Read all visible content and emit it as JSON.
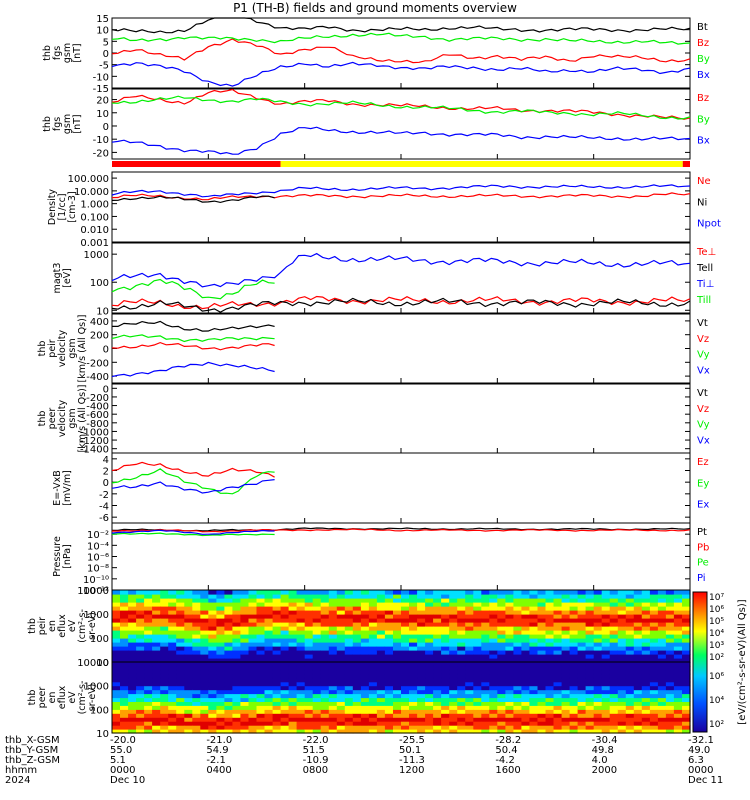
{
  "title": "P1 (TH-B) fields and ground moments overview",
  "colors": {
    "black": "#000000",
    "red": "#ff0000",
    "green": "#00ee00",
    "blue": "#0000ff",
    "yellow": "#ffff00"
  },
  "chart_data": [
    {
      "type": "line",
      "ylabel": [
        "thb",
        "fgs",
        "gsm",
        "[nT]"
      ],
      "ylim": [
        -15,
        15
      ],
      "ticks": [
        15,
        10,
        5,
        0,
        -5,
        -10,
        -15
      ],
      "series": [
        {
          "name": "Bt",
          "color": "black",
          "values": [
            10,
            9,
            9,
            10,
            14,
            16,
            14,
            11,
            10,
            11,
            10,
            10,
            10,
            10,
            11,
            11,
            10,
            10,
            10,
            10,
            10,
            10,
            10,
            10,
            10
          ]
        },
        {
          "name": "Bz",
          "color": "red",
          "values": [
            0,
            2,
            -1,
            -3,
            3,
            6,
            3,
            -1,
            2,
            3,
            -2,
            -3,
            -3,
            -4,
            -1,
            -2,
            -1,
            -3,
            -2,
            -3,
            -1,
            -2,
            -2,
            -3,
            -3
          ]
        },
        {
          "name": "By",
          "color": "green",
          "values": [
            6,
            5,
            6,
            7,
            6,
            6,
            6,
            5,
            6,
            7,
            8,
            8,
            7,
            7,
            6,
            6,
            6,
            6,
            6,
            5,
            5,
            5,
            5,
            4,
            4
          ]
        },
        {
          "name": "Bx",
          "color": "blue",
          "values": [
            -5,
            -4,
            -6,
            -8,
            -12,
            -14,
            -10,
            -6,
            -4,
            -6,
            -5,
            -5,
            -6,
            -7,
            -6,
            -6,
            -7,
            -7,
            -8,
            -7,
            -8,
            -7,
            -7,
            -8,
            -7
          ]
        }
      ]
    },
    {
      "type": "line",
      "ylabel": [
        "thb",
        "fgs",
        "gsm",
        "[nT]"
      ],
      "ylim": [
        -25,
        28
      ],
      "ticks": [
        20,
        10,
        0,
        -10,
        -20
      ],
      "series": [
        {
          "name": "Bz",
          "color": "red",
          "values": [
            18,
            22,
            20,
            18,
            25,
            26,
            22,
            17,
            18,
            19,
            17,
            16,
            15,
            15,
            14,
            13,
            13,
            12,
            12,
            11,
            10,
            9,
            8,
            6,
            5
          ]
        },
        {
          "name": "By",
          "color": "green",
          "values": [
            18,
            19,
            20,
            21,
            20,
            19,
            20,
            18,
            17,
            17,
            17,
            16,
            15,
            14,
            13,
            12,
            11,
            11,
            10,
            10,
            9,
            9,
            8,
            7,
            6
          ]
        },
        {
          "name": "Bx",
          "color": "blue",
          "values": [
            -12,
            -13,
            -15,
            -18,
            -20,
            -22,
            -16,
            -6,
            -2,
            -3,
            -4,
            -5,
            -6,
            -5,
            -6,
            -7,
            -7,
            -8,
            -8,
            -9,
            -9,
            -9,
            -10,
            -10,
            -10
          ]
        }
      ]
    },
    {
      "type": "line",
      "scale": "log",
      "ylabel": [
        "Density",
        "[1/cc]",
        "[cm-3]"
      ],
      "ylim": [
        0.001,
        300
      ],
      "ticks": [
        "100.000",
        "10.000",
        "1.000",
        "0.100",
        "0.010",
        "0.001"
      ],
      "tick_values": [
        100,
        10,
        1,
        0.1,
        0.01,
        0.001
      ],
      "series": [
        {
          "name": "Ne",
          "color": "red",
          "values": [
            3,
            4,
            4,
            3,
            2,
            3,
            4,
            4,
            4,
            4,
            4,
            4,
            4,
            4,
            4,
            4,
            4,
            4,
            4,
            4,
            4,
            4,
            4,
            5,
            5
          ]
        },
        {
          "name": "Ni",
          "color": "black",
          "values": [
            2,
            3,
            3,
            2,
            1.5,
            2,
            3,
            3,
            null,
            null,
            null,
            null,
            null,
            null,
            null,
            null,
            null,
            null,
            null,
            null,
            null,
            null,
            null,
            null,
            null
          ]
        },
        {
          "name": "Npot",
          "color": "blue",
          "values": [
            5,
            8,
            10,
            6,
            3,
            5,
            8,
            10,
            15,
            14,
            14,
            15,
            16,
            16,
            18,
            20,
            22,
            22,
            22,
            20,
            20,
            21,
            22,
            22,
            22
          ]
        }
      ]
    },
    {
      "type": "line",
      "scale": "log",
      "ylabel": [
        "magt3",
        "[eV]"
      ],
      "ylim": [
        8,
        2500
      ],
      "ticks": [
        "1000",
        "100",
        "10"
      ],
      "tick_values": [
        1000,
        100,
        10
      ],
      "series": [
        {
          "name": "Te⊥",
          "color": "red",
          "values": [
            15,
            18,
            20,
            15,
            12,
            15,
            18,
            20,
            24,
            24,
            23,
            23,
            22,
            22,
            22,
            22,
            22,
            22,
            21,
            21,
            21,
            21,
            21,
            21,
            21
          ]
        },
        {
          "name": "Tell",
          "color": "black",
          "values": [
            13,
            15,
            17,
            13,
            11,
            13,
            15,
            17,
            20,
            20,
            19,
            19,
            19,
            19,
            19,
            19,
            19,
            18,
            18,
            18,
            18,
            18,
            18,
            18,
            18
          ]
        },
        {
          "name": "Ti⊥",
          "color": "blue",
          "values": [
            120,
            150,
            200,
            120,
            60,
            80,
            150,
            200,
            800,
            750,
            700,
            650,
            620,
            600,
            580,
            560,
            540,
            520,
            500,
            480,
            470,
            460,
            450,
            440,
            430
          ]
        },
        {
          "name": "Till",
          "color": "green",
          "values": [
            60,
            80,
            100,
            60,
            30,
            40,
            80,
            100,
            null,
            null,
            null,
            null,
            null,
            null,
            null,
            null,
            null,
            null,
            null,
            null,
            null,
            null,
            null,
            null,
            null
          ]
        }
      ]
    },
    {
      "type": "line",
      "ylabel": [
        "thb",
        "peir",
        "velocity",
        "gsm",
        "[km/s (All Qs)]"
      ],
      "ylim": [
        -500,
        500
      ],
      "ticks": [
        400,
        200,
        0,
        -200,
        -400
      ],
      "series": [
        {
          "name": "Vt",
          "color": "black",
          "values": [
            320,
            350,
            380,
            300,
            250,
            280,
            330,
            360,
            null,
            null,
            null,
            null,
            null,
            null,
            null,
            null,
            null,
            null,
            null,
            null,
            null,
            null,
            null,
            null,
            350
          ]
        },
        {
          "name": "Vz",
          "color": "red",
          "values": [
            20,
            40,
            60,
            30,
            10,
            20,
            40,
            50,
            null,
            null,
            null,
            null,
            null,
            null,
            null,
            null,
            null,
            null,
            null,
            null,
            null,
            null,
            null,
            null,
            80
          ]
        },
        {
          "name": "Vy",
          "color": "green",
          "values": [
            150,
            170,
            180,
            130,
            110,
            140,
            160,
            170,
            null,
            null,
            null,
            null,
            null,
            null,
            null,
            null,
            null,
            null,
            null,
            null,
            null,
            null,
            null,
            null,
            100
          ]
        },
        {
          "name": "Vx",
          "color": "blue",
          "values": [
            -380,
            -360,
            -340,
            -260,
            -200,
            -240,
            -300,
            -340,
            null,
            null,
            null,
            null,
            null,
            null,
            null,
            null,
            null,
            null,
            null,
            null,
            null,
            null,
            null,
            null,
            -290
          ]
        }
      ]
    },
    {
      "type": "line",
      "ylabel": [
        "thb",
        "peer",
        "velocity",
        "gsm",
        "[km/s (All Qs)]"
      ],
      "ylim": [
        -1500,
        100
      ],
      "ticks": [
        0,
        -200,
        -400,
        -600,
        -800,
        -1000,
        -1200,
        -1400
      ],
      "series": [
        {
          "name": "Vt",
          "color": "black",
          "values": []
        },
        {
          "name": "Vz",
          "color": "red",
          "values": []
        },
        {
          "name": "Vy",
          "color": "green",
          "values": []
        },
        {
          "name": "Vx",
          "color": "blue",
          "values": []
        }
      ]
    },
    {
      "type": "line",
      "ylabel": [
        "E=-VxB",
        "[mV/m]"
      ],
      "ylim": [
        -7,
        5
      ],
      "ticks": [
        4,
        2,
        0,
        -2,
        -4,
        -6
      ],
      "series": [
        {
          "name": "Ez",
          "color": "red",
          "values": [
            2,
            3,
            3,
            2,
            1,
            2,
            2,
            1,
            null,
            null,
            null,
            null,
            null,
            null,
            null,
            null,
            null,
            null,
            null,
            null,
            null,
            null,
            null,
            null,
            2
          ]
        },
        {
          "name": "Ey",
          "color": "green",
          "values": [
            0,
            1,
            2,
            0,
            -1,
            -2,
            1,
            2,
            null,
            null,
            null,
            null,
            null,
            null,
            null,
            null,
            null,
            null,
            null,
            null,
            null,
            null,
            null,
            null,
            1
          ]
        },
        {
          "name": "Ex",
          "color": "blue",
          "values": [
            -1,
            -1,
            0,
            -1,
            -2,
            -1,
            0,
            1,
            null,
            null,
            null,
            null,
            null,
            null,
            null,
            null,
            null,
            null,
            null,
            null,
            null,
            null,
            null,
            null,
            0
          ]
        }
      ]
    },
    {
      "type": "line",
      "scale": "log",
      "ylabel": [
        "Pressure",
        "[nPa]"
      ],
      "ylim": [
        1e-12,
        1
      ],
      "ticks": [
        "10⁻²",
        "10⁻⁴",
        "10⁻⁶",
        "10⁻⁸",
        "10⁻¹⁰",
        "10⁻¹²"
      ],
      "tick_values": [
        0.01,
        0.0001,
        1e-06,
        1e-08,
        1e-10,
        1e-12
      ],
      "series": [
        {
          "name": "Pt",
          "color": "black",
          "values": [
            0.05,
            0.06,
            0.06,
            0.05,
            0.04,
            0.05,
            0.06,
            0.07,
            0.1,
            0.1,
            0.1,
            0.09,
            0.09,
            0.09,
            0.09,
            0.09,
            0.08,
            0.08,
            0.08,
            0.08,
            0.08,
            0.08,
            0.08,
            0.08,
            0.08
          ]
        },
        {
          "name": "Pb",
          "color": "red",
          "values": [
            0.04,
            0.05,
            0.05,
            0.04,
            0.03,
            0.04,
            0.05,
            0.05,
            0.06,
            0.06,
            0.06,
            0.06,
            0.05,
            0.05,
            0.05,
            0.05,
            0.05,
            0.05,
            0.05,
            0.05,
            0.05,
            0.05,
            0.05,
            0.05,
            0.05
          ]
        },
        {
          "name": "Pe",
          "color": "green",
          "values": [
            0.01,
            0.01,
            0.015,
            0.01,
            0.005,
            0.008,
            0.01,
            0.012,
            null,
            null,
            null,
            null,
            null,
            null,
            null,
            null,
            null,
            null,
            null,
            null,
            null,
            null,
            null,
            null,
            null
          ]
        },
        {
          "name": "Pi",
          "color": "blue",
          "values": [
            0.02,
            0.03,
            0.04,
            0.02,
            0.01,
            0.02,
            0.03,
            0.04,
            null,
            null,
            null,
            null,
            null,
            null,
            null,
            null,
            null,
            null,
            null,
            null,
            null,
            null,
            null,
            null,
            null
          ]
        }
      ]
    },
    {
      "type": "heatmap",
      "scale": "log",
      "ylabel": [
        "thb",
        "peir",
        "en",
        "eflux",
        "eV",
        "(cm²-s-",
        "sr-eV)"
      ],
      "ylim": [
        10,
        10000
      ],
      "ticks": [
        "10000",
        "1000",
        "100",
        "10"
      ],
      "tick_values": [
        10000,
        1000,
        100,
        10
      ],
      "peak_energy_eV": [
        800,
        900,
        1000,
        700,
        400,
        500,
        900,
        1000,
        700,
        700,
        700,
        700,
        650,
        650,
        650,
        650,
        650,
        650,
        600,
        600,
        600,
        600,
        600,
        600,
        600
      ]
    },
    {
      "type": "heatmap",
      "scale": "log",
      "ylabel": [
        "thb",
        "peer",
        "en",
        "eflux",
        "eV",
        "(cm²-s-",
        "sr-eV)"
      ],
      "ylim": [
        10,
        10000
      ],
      "ticks": [
        "10000",
        "1000",
        "100",
        "10"
      ],
      "tick_values": [
        10000,
        1000,
        100,
        10
      ],
      "peak_energy_eV": [
        30,
        35,
        40,
        30,
        25,
        30,
        35,
        40,
        35,
        35,
        35,
        35,
        35,
        35,
        35,
        35,
        35,
        35,
        35,
        35,
        35,
        35,
        35,
        35,
        35
      ]
    }
  ],
  "mode_bar": {
    "segments": [
      {
        "color": "red",
        "from_hour": 0,
        "to_hour": 7.0
      },
      {
        "color": "yellow",
        "from_hour": 7.0,
        "to_hour": 23.7
      },
      {
        "color": "red",
        "from_hour": 23.7,
        "to_hour": 24
      }
    ]
  },
  "colorbar": {
    "label": "[eV/(cm²-s-sr-eV)(All Qs)]",
    "upper_ticks": [
      "10⁷",
      "10⁶",
      "10⁵",
      "10⁴",
      "10³",
      "10²"
    ],
    "lower_ticks": [
      "10⁶",
      "10⁴",
      "10²"
    ]
  },
  "footer": {
    "row_labels": [
      "thb_X-GSM",
      "thb_Y-GSM",
      "thb_Z-GSM",
      "hhmm",
      "2024"
    ],
    "columns": [
      [
        "-20.0",
        "55.0",
        "5.1",
        "0000",
        "Dec 10"
      ],
      [
        "-21.0",
        "54.9",
        "-2.1",
        "0400",
        ""
      ],
      [
        "-22.0",
        "51.5",
        "-10.9",
        "0800",
        ""
      ],
      [
        "-25.5",
        "50.1",
        "-11.3",
        "1200",
        ""
      ],
      [
        "-28.2",
        "50.4",
        "-4.2",
        "1600",
        ""
      ],
      [
        "-30.4",
        "49.8",
        "4.0",
        "2000",
        ""
      ],
      [
        "-32.1",
        "49.0",
        "6.3",
        "0000",
        "Dec 11"
      ]
    ]
  }
}
